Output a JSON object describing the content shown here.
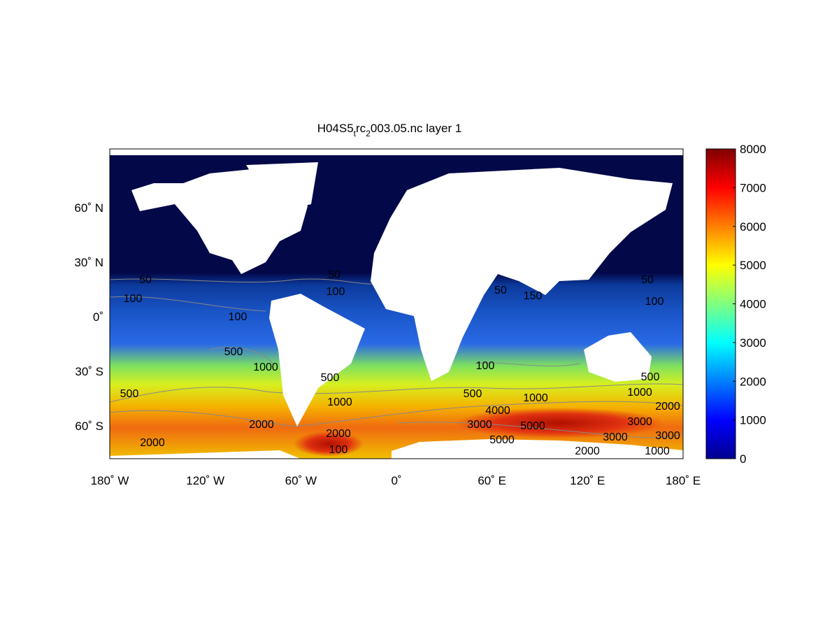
{
  "title": {
    "base": "H04S5",
    "sub1": "t",
    "mid": "rc",
    "sub2": "2",
    "rest": "003.05.nc layer 1"
  },
  "x_ticks": [
    "180˚ W",
    "120˚ W",
    "60˚ W",
    "0˚",
    "60˚ E",
    "120˚ E",
    "180˚ E"
  ],
  "y_ticks": [
    "60˚ N",
    "30˚ N",
    "0˚",
    "30˚ S",
    "60˚ S"
  ],
  "colorbar": {
    "ticks": [
      "0",
      "1000",
      "2000",
      "3000",
      "4000",
      "5000",
      "6000",
      "7000",
      "8000"
    ],
    "range": [
      0,
      8000
    ],
    "colormap": "jet"
  },
  "contour_labels": [
    "50",
    "100",
    "100",
    "50",
    "100",
    "50",
    "150",
    "50",
    "100",
    "500",
    "1000",
    "500",
    "500",
    "1000",
    "100",
    "500",
    "1000",
    "1000",
    "500",
    "1000",
    "2000",
    "2000",
    "2000",
    "3000",
    "3000",
    "4000",
    "5000",
    "5000",
    "3000",
    "2000",
    "3000",
    "2000",
    "100"
  ],
  "colors": {
    "land": "#ffffff",
    "ocean_low": "#020848",
    "contour": "#888888"
  }
}
